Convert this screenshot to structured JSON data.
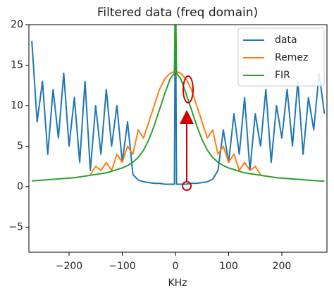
{
  "chart_data": {
    "type": "line",
    "title": "Filtered data (freq domain)",
    "x_label": "KHz",
    "x": [
      -270,
      -260,
      -250,
      -240,
      -230,
      -220,
      -210,
      -200,
      -190,
      -180,
      -170,
      -160,
      -150,
      -140,
      -130,
      -120,
      -110,
      -100,
      -90,
      -80,
      -70,
      -60,
      -50,
      -40,
      -30,
      -20,
      -10,
      -2,
      0,
      2,
      10,
      20,
      30,
      40,
      50,
      60,
      70,
      80,
      90,
      100,
      110,
      120,
      130,
      140,
      150,
      160,
      170,
      180,
      190,
      200,
      210,
      220,
      230,
      240,
      250,
      260,
      270,
      280
    ],
    "series": [
      {
        "name": "data",
        "color": "#1f77b4",
        "values": [
          18,
          8,
          13,
          4,
          12,
          6,
          14,
          5,
          11,
          3,
          13,
          2,
          10,
          4,
          12,
          5,
          10,
          3,
          8,
          1.5,
          0.8,
          0.6,
          0.5,
          0.4,
          0.4,
          0.3,
          0.3,
          0.3,
          25,
          0.3,
          0.3,
          0.3,
          0.4,
          0.4,
          0.5,
          0.6,
          0.9,
          2,
          7,
          3,
          9,
          4,
          11,
          2,
          9,
          5,
          12,
          3,
          10,
          6,
          12,
          5,
          13,
          4,
          11,
          7,
          14,
          9
        ]
      },
      {
        "name": "Remez",
        "color": "#ff7f0e",
        "values": [
          null,
          null,
          null,
          null,
          null,
          null,
          null,
          null,
          null,
          null,
          null,
          1.5,
          2.5,
          2,
          3,
          2,
          4,
          3,
          5,
          4,
          7,
          6,
          8,
          10,
          12,
          13.3,
          14,
          14.2,
          14.2,
          14.2,
          14,
          13.3,
          12,
          10,
          8,
          6,
          7,
          4,
          5,
          3,
          4,
          2,
          3,
          2,
          2.5,
          1.5,
          null,
          null,
          null,
          null,
          null,
          null,
          null,
          null,
          null,
          null,
          null,
          null
        ]
      },
      {
        "name": "FIR",
        "color": "#2ca02c",
        "values": [
          0.7,
          0.75,
          0.8,
          0.85,
          0.9,
          0.95,
          1,
          1.05,
          1.1,
          1.2,
          1.3,
          1.4,
          1.5,
          1.6,
          1.7,
          1.9,
          2.1,
          2.3,
          2.6,
          3,
          3.6,
          4.5,
          5.8,
          7.5,
          9.5,
          11.5,
          13.3,
          14,
          25,
          14,
          13.3,
          11.5,
          9.5,
          7.5,
          5.8,
          4.5,
          3.6,
          3,
          2.6,
          2.3,
          2.1,
          1.9,
          1.7,
          1.6,
          1.5,
          1.4,
          1.3,
          1.2,
          1.1,
          1.05,
          1,
          0.95,
          0.9,
          0.85,
          0.8,
          0.75,
          0.7,
          0.68
        ]
      }
    ],
    "xlim": [
      -275.5,
      284.8
    ],
    "ylim": [
      -8.1,
      20
    ],
    "xticks": [
      {
        "value": -200,
        "label": "−200"
      },
      {
        "value": -100,
        "label": "−100"
      },
      0,
      100,
      200
    ],
    "yticks": [
      {
        "value": -5,
        "label": "−5"
      },
      0,
      5,
      10,
      15,
      20
    ],
    "legend": "upper right",
    "grid": false
  }
}
